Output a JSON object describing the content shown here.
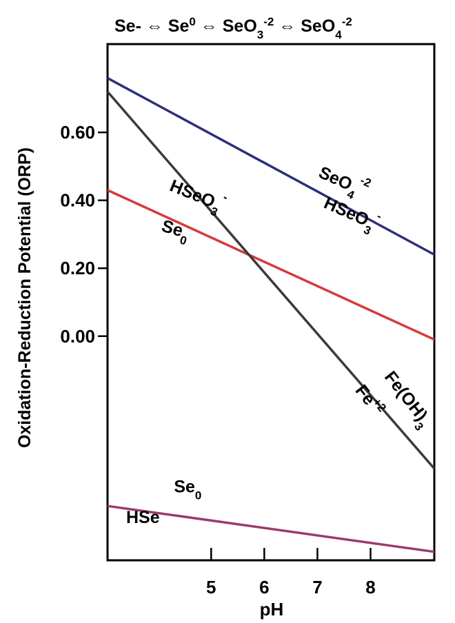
{
  "chart_data": {
    "type": "line",
    "title": {
      "parts": [
        "Se- ⇔ Se",
        "0",
        " ⇔ SeO",
        "3",
        "-2",
        " ⇔ SeO",
        "4",
        "-2"
      ]
    },
    "xlabel": "pH",
    "ylabel": "Oxidation-Reduction Potential (ORP)",
    "xlim": [
      3.05,
      9.2
    ],
    "ylim": [
      -0.66,
      0.86
    ],
    "x_ticks": [
      {
        "value": 5,
        "label": "5"
      },
      {
        "value": 6,
        "label": "6"
      },
      {
        "value": 7,
        "label": "7"
      },
      {
        "value": 8,
        "label": "8"
      }
    ],
    "y_ticks": [
      {
        "value": 0.6,
        "label": "0.60"
      },
      {
        "value": 0.4,
        "label": "0.40"
      },
      {
        "value": 0.2,
        "label": "0.20"
      },
      {
        "value": 0.0,
        "label": "0.00"
      }
    ],
    "grid": false,
    "series": [
      {
        "id": "seo4-hseo3",
        "color": "#2b2f7a",
        "x": [
          3.05,
          9.2
        ],
        "y": [
          0.76,
          0.24
        ]
      },
      {
        "id": "hseo3-se0",
        "color": "#d63a3a",
        "x": [
          3.05,
          9.2
        ],
        "y": [
          0.43,
          -0.01
        ]
      },
      {
        "id": "fe-oh3-fe2",
        "color": "#3a3a3a",
        "x": [
          3.05,
          9.2
        ],
        "y": [
          0.72,
          -0.39
        ]
      },
      {
        "id": "se0-hse",
        "color": "#9b3a6e",
        "x": [
          3.05,
          9.2
        ],
        "y": [
          -0.5,
          -0.635
        ]
      }
    ],
    "annotations": [
      {
        "id": "seo4",
        "parts": [
          "SeO",
          "4",
          "-2"
        ],
        "x": 7.0,
        "y": 0.47,
        "angle": 24
      },
      {
        "id": "hseo3-upper",
        "parts": [
          "HSeO",
          "3",
          "-"
        ],
        "x": 7.1,
        "y": 0.38,
        "angle": 24
      },
      {
        "id": "hseo3-left",
        "parts": [
          "HSeO",
          "3",
          "-"
        ],
        "x": 4.2,
        "y": 0.43,
        "angle": 22
      },
      {
        "id": "se0-mid",
        "parts": [
          "Se",
          "0"
        ],
        "x": 4.05,
        "y": 0.31,
        "angle": 16
      },
      {
        "id": "feoh3",
        "parts": [
          "Fe(OH)",
          "3",
          ""
        ],
        "x": 8.25,
        "y": -0.12,
        "angle": 52
      },
      {
        "id": "fe2",
        "parts": [
          "Fe",
          "",
          "+2"
        ],
        "x": 7.7,
        "y": -0.16,
        "angle": 52
      },
      {
        "id": "se0-low",
        "parts": [
          "Se",
          "0"
        ],
        "x": 4.3,
        "y": -0.46,
        "angle": 0
      },
      {
        "id": "hse",
        "parts": [
          "HSe",
          "",
          ""
        ],
        "x": 3.4,
        "y": -0.55,
        "angle": 0
      }
    ]
  }
}
